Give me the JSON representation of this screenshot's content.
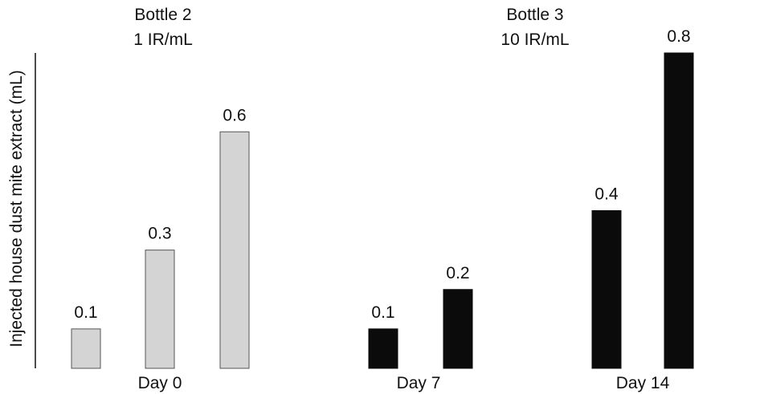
{
  "chart_data": {
    "type": "bar",
    "ylabel": "Injected house dust mite extract (mL)",
    "ylim": [
      0,
      0.8
    ],
    "grid": false,
    "groups": [
      {
        "title_lines": [
          "Bottle 2",
          "1 IR/mL"
        ],
        "color": "#d4d4d4",
        "stroke": "#555555"
      },
      {
        "title_lines": [
          "Bottle 3",
          "10 IR/mL"
        ],
        "color": "#0b0b0b",
        "stroke": "#0b0b0b"
      }
    ],
    "bars": [
      {
        "group": 0,
        "value": 0.1,
        "label": "0.1"
      },
      {
        "group": 0,
        "value": 0.3,
        "label": "0.3"
      },
      {
        "group": 0,
        "value": 0.6,
        "label": "0.6"
      },
      {
        "group": 1,
        "value": 0.1,
        "label": "0.1"
      },
      {
        "group": 1,
        "value": 0.2,
        "label": "0.2"
      },
      {
        "group": 1,
        "value": 0.4,
        "label": "0.4"
      },
      {
        "group": 1,
        "value": 0.8,
        "label": "0.8"
      }
    ],
    "x_tick_labels": [
      "Day 0",
      "Day 7",
      "Day 14"
    ]
  }
}
